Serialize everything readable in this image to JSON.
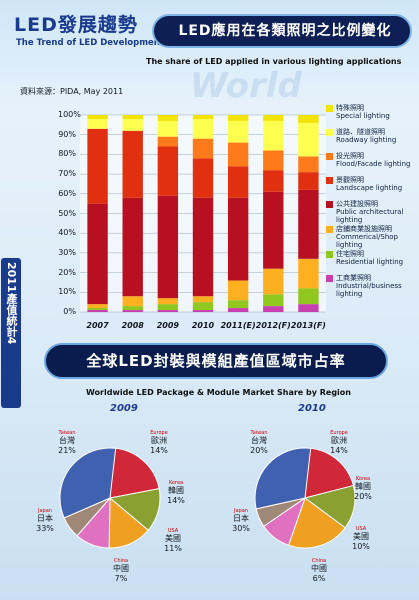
{
  "header": {
    "title_cn": "LED發展趨勢",
    "title_en": "The Trend of LED Development"
  },
  "banner1": "LED應用在各類照明之比例變化",
  "banner1_sub": "The share of LED applied in various lighting applications",
  "source": "資料來源：PIDA, May 2011",
  "watermark": "World",
  "side_label": "2011產值統計4",
  "legend": [
    {
      "cn": "特殊照明",
      "en": "Special lighting",
      "color": "#f2e400"
    },
    {
      "cn": "道路、隧道照明",
      "en": "Roadway lighting",
      "color": "#ffff50"
    },
    {
      "cn": "投光照明",
      "en": "Flood/Facade lighting",
      "color": "#ff7a1a"
    },
    {
      "cn": "景觀照明",
      "en": "Landscape lighting",
      "color": "#e03010"
    },
    {
      "cn": "公共建設照明",
      "en": "Public architectural lighting",
      "color": "#b81020"
    },
    {
      "cn": "店鋪商業設施照明",
      "en": "Commerical/Shop lighting",
      "color": "#ffb020"
    },
    {
      "cn": "住宅照明",
      "en": "Residential lighting",
      "color": "#90c820"
    },
    {
      "cn": "工商業照明",
      "en": "Industrial/business lighting",
      "color": "#c840b0"
    }
  ],
  "chart_data": [
    {
      "type": "bar",
      "stacked": true,
      "ylim": [
        0,
        100
      ],
      "yticks": [
        "0%",
        "10%",
        "20%",
        "30%",
        "40%",
        "50%",
        "60%",
        "70%",
        "80%",
        "90%",
        "100%"
      ],
      "categories": [
        "2007",
        "2008",
        "2009",
        "2010",
        "2011(E)",
        "2012(F)",
        "2013(F)"
      ],
      "series": [
        {
          "name": "工商業照明 Industrial/business lighting",
          "values": [
            1,
            1,
            1,
            1,
            2,
            3,
            4
          ]
        },
        {
          "name": "住宅照明 Residential lighting",
          "values": [
            1,
            2,
            3,
            4,
            4,
            6,
            8
          ]
        },
        {
          "name": "店鋪商業設施照明 Commerical/Shop lighting",
          "values": [
            2,
            5,
            3,
            3,
            10,
            13,
            15
          ]
        },
        {
          "name": "公共建設照明 Public architectural lighting",
          "values": [
            51,
            50,
            52,
            50,
            42,
            39,
            35
          ]
        },
        {
          "name": "景觀照明 Landscape lighting",
          "values": [
            38,
            34,
            25,
            20,
            16,
            11,
            9
          ]
        },
        {
          "name": "投光照明 Flood/Facade lighting",
          "values": [
            0,
            0,
            5,
            10,
            12,
            10,
            8
          ]
        },
        {
          "name": "道路、隧道照明 Roadway lighting",
          "values": [
            5,
            6,
            8,
            10,
            11,
            15,
            17
          ]
        },
        {
          "name": "特殊照明 Special lighting",
          "values": [
            2,
            2,
            3,
            2,
            3,
            3,
            4
          ]
        }
      ]
    },
    {
      "type": "pie",
      "title": "2009",
      "slices": [
        {
          "cn": "台灣",
          "en": "Taiwan",
          "value": 21,
          "color": "#d02838"
        },
        {
          "cn": "歐洲",
          "en": "Europe",
          "value": 14,
          "color": "#8aa030"
        },
        {
          "cn": "韓國",
          "en": "Korea",
          "value": 14,
          "color": "#f0a020"
        },
        {
          "cn": "美國",
          "en": "USA",
          "value": 11,
          "color": "#e070c0"
        },
        {
          "cn": "中國",
          "en": "China",
          "value": 7,
          "color": "#a08878"
        },
        {
          "cn": "日本",
          "en": "Japan",
          "value": 33,
          "color": "#4060b0"
        }
      ]
    },
    {
      "type": "pie",
      "title": "2010",
      "slices": [
        {
          "cn": "台灣",
          "en": "Taiwan",
          "value": 20,
          "color": "#d02838"
        },
        {
          "cn": "歐洲",
          "en": "Europe",
          "value": 14,
          "color": "#8aa030"
        },
        {
          "cn": "韓國",
          "en": "Korea",
          "value": 20,
          "color": "#f0a020"
        },
        {
          "cn": "美國",
          "en": "USA",
          "value": 10,
          "color": "#e070c0"
        },
        {
          "cn": "中國",
          "en": "China",
          "value": 6,
          "color": "#a08878"
        },
        {
          "cn": "日本",
          "en": "Japan",
          "value": 30,
          "color": "#4060b0"
        }
      ]
    }
  ],
  "banner2": "全球LED封裝與模組產值區域市占率",
  "banner2_sub": "Worldwide LED Package & Module Market Share by Region"
}
